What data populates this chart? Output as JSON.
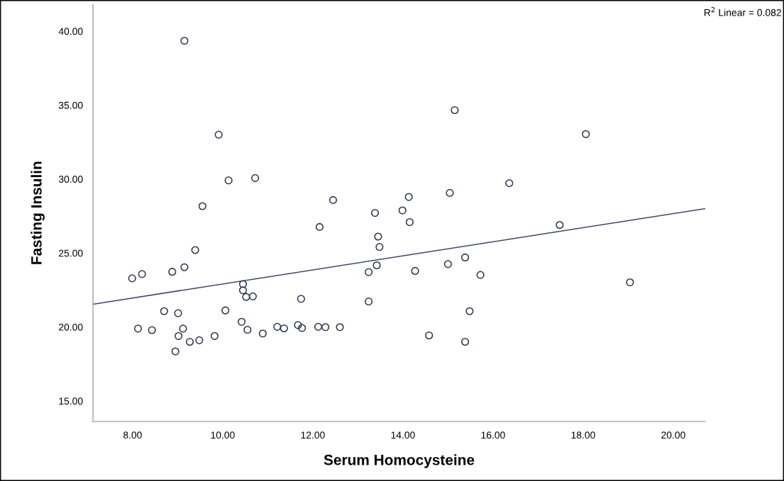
{
  "chart_data": {
    "type": "scatter",
    "xlabel": "Serum Homocysteine",
    "ylabel": "Fasting Insulin",
    "annotations": [
      "R$^{2}$ Linear = 0.082"
    ],
    "grid": false,
    "xlim": [
      7.12,
      20.71
    ],
    "ylim": [
      13.61,
      41.8
    ],
    "xticks": [
      {
        "value": 8,
        "label": "8.00"
      },
      {
        "value": 10,
        "label": "10.00"
      },
      {
        "value": 12,
        "label": "12.00"
      },
      {
        "value": 14,
        "label": "14.00"
      },
      {
        "value": 16,
        "label": "16.00"
      },
      {
        "value": 18,
        "label": "18.00"
      },
      {
        "value": 20,
        "label": "20.00"
      }
    ],
    "yticks": [
      {
        "value": 15,
        "label": "15.00"
      },
      {
        "value": 20,
        "label": "20.00"
      },
      {
        "value": 25,
        "label": "25.00"
      },
      {
        "value": 30,
        "label": "30.00"
      },
      {
        "value": 35,
        "label": "35.00"
      },
      {
        "value": 40,
        "label": "40.00"
      }
    ],
    "series": [
      {
        "color": "#2b3550",
        "marker": "circle",
        "x": [
          9.15,
          9.91,
          10.13,
          10.72,
          9.55,
          9.39,
          7.99,
          8.21,
          8.88,
          9.15,
          12.45,
          12.15,
          13.38,
          13.99,
          14.13,
          14.15,
          13.45,
          13.48,
          13.42,
          13.24,
          14.27,
          13.24,
          10.45,
          10.45,
          10.52,
          10.67,
          11.74,
          8.7,
          9.01,
          10.06,
          8.12,
          8.43,
          9.12,
          9.02,
          8.95,
          9.27,
          9.48,
          9.82,
          10.42,
          10.55,
          10.89,
          11.21,
          11.36,
          11.67,
          11.76,
          12.12,
          12.28,
          12.6,
          14.58,
          15.15,
          18.06,
          16.36,
          15.04,
          17.48,
          15.38,
          15.0,
          15.72,
          19.04,
          15.48,
          15.38
        ],
        "values": [
          39.35,
          33.0,
          29.91,
          30.07,
          28.17,
          25.2,
          23.29,
          23.58,
          23.73,
          24.04,
          28.58,
          26.76,
          27.71,
          27.88,
          28.79,
          27.09,
          26.11,
          25.41,
          24.17,
          23.71,
          23.79,
          21.72,
          22.9,
          22.48,
          22.03,
          22.07,
          21.9,
          21.07,
          20.93,
          21.12,
          19.89,
          19.79,
          19.89,
          19.39,
          18.35,
          19.0,
          19.1,
          19.39,
          20.35,
          19.81,
          19.56,
          20.01,
          19.91,
          20.13,
          19.93,
          20.01,
          19.99,
          19.99,
          19.43,
          34.66,
          33.04,
          29.72,
          29.06,
          26.9,
          24.7,
          24.25,
          23.52,
          23.02,
          21.07,
          19.0
        ]
      },
      {
        "type": "line",
        "color": "#3a4866",
        "marker": "none",
        "x": [
          7.12,
          20.71
        ],
        "values": [
          21.54,
          28.0
        ]
      }
    ]
  }
}
